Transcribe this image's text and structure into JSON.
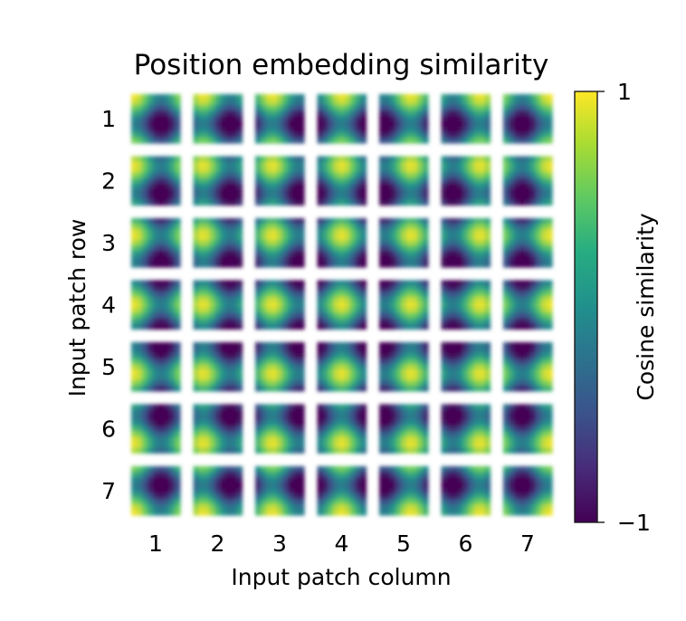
{
  "chart_data": {
    "type": "heatmap",
    "title": "Position embedding similarity",
    "xlabel": "Input patch column",
    "ylabel": "Input patch row",
    "rows": [
      "1",
      "2",
      "3",
      "4",
      "5",
      "6",
      "7"
    ],
    "columns": [
      "1",
      "2",
      "3",
      "4",
      "5",
      "6",
      "7"
    ],
    "grid_size": 7,
    "colorbar": {
      "label": "Cosine similarity",
      "min": -1,
      "max": 1,
      "tick_labels": [
        "1",
        "−1"
      ],
      "colormap": "viridis"
    },
    "colormap_colors": [
      "#440154",
      "#3b528b",
      "#21908d",
      "#5dc963",
      "#fde725"
    ]
  }
}
